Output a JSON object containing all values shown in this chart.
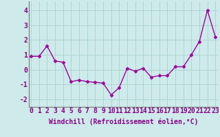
{
  "x": [
    0,
    1,
    2,
    3,
    4,
    5,
    6,
    7,
    8,
    9,
    10,
    11,
    12,
    13,
    14,
    15,
    16,
    17,
    18,
    19,
    20,
    21,
    22,
    23
  ],
  "y": [
    0.9,
    0.9,
    1.6,
    0.6,
    0.5,
    -0.8,
    -0.7,
    -0.8,
    -0.85,
    -0.9,
    -1.7,
    -1.2,
    0.1,
    -0.1,
    0.1,
    -0.5,
    -0.4,
    -0.4,
    0.2,
    0.2,
    1.0,
    1.9,
    4.0,
    2.2
  ],
  "line_color": "#990099",
  "marker": "D",
  "markersize": 2.5,
  "linewidth": 1.0,
  "bg_color": "#ceeaea",
  "grid_color": "#aed4d4",
  "xlabel": "Windchill (Refroidissement éolien,°C)",
  "xlabel_fontsize": 7,
  "xtick_labels": [
    "0",
    "1",
    "2",
    "3",
    "4",
    "5",
    "6",
    "7",
    "8",
    "9",
    "10",
    "11",
    "12",
    "13",
    "14",
    "15",
    "16",
    "17",
    "18",
    "19",
    "20",
    "21",
    "22",
    "23"
  ],
  "ytick_values": [
    -2,
    -1,
    0,
    1,
    2,
    3,
    4
  ],
  "ylim": [
    -2.5,
    4.6
  ],
  "xlim": [
    -0.3,
    23.3
  ],
  "tick_fontsize": 7,
  "tick_color": "#880088",
  "label_color": "#880088"
}
